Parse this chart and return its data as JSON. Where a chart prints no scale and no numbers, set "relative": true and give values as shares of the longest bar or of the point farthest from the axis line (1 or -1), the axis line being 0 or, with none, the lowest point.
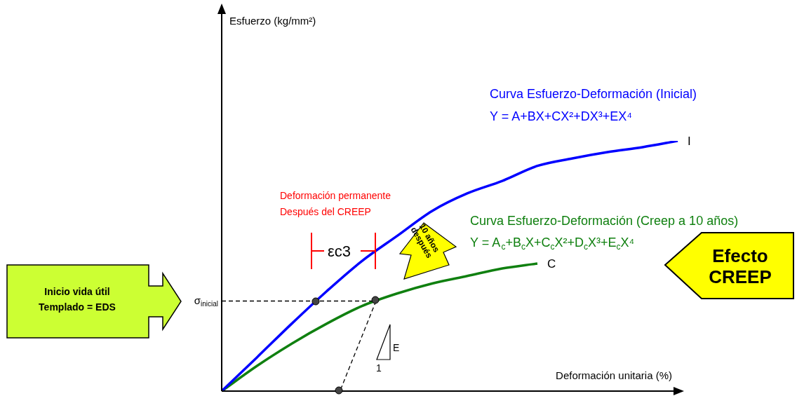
{
  "chart_data": {
    "type": "line",
    "relative": true,
    "xlabel": "Deformación unitaria (%)",
    "categories": [
      null,
      null,
      null,
      null,
      null,
      null,
      null,
      null,
      null,
      null,
      null,
      null,
      null,
      null
    ],
    "series": [
      {
        "name": "I",
        "color": "#0000ff",
        "values": [
          0,
          0.134,
          0.27,
          0.4,
          0.52,
          0.62,
          0.72,
          0.79,
          0.84,
          0.9,
          0.93,
          0.955,
          0.975,
          1
        ]
      },
      {
        "name": "C",
        "color": "#108010",
        "values": [
          0,
          0.1,
          0.19,
          0.27,
          0.34,
          0.39,
          0.43,
          0.46,
          0.49,
          0.51,
          null,
          null,
          null,
          null
        ]
      }
    ],
    "ref_lines": [
      {
        "axis": "y",
        "value": 0.36,
        "label": "σ$_{inicial}$",
        "line_style": "dashed"
      }
    ],
    "annotations": [
      "Curva Esfuerzo-Deformación (Inicial)",
      "Y = A+BX+CX²+DX³+EX⁴",
      "Curva Esfuerzo-Deformación (Creep a 10 años)",
      "Y = A$_{c}$+B$_{c}$X+C$_{c}$X²+D$_{c}$X³+E$_{c}$X⁴",
      "Deformación permanente",
      "Después del CREEP",
      "εc3",
      "Inicio vida útil\nTemplado = EDS",
      "10 años\ndespués",
      "Efecto\nCREEP",
      "E",
      "1",
      "Esfuerzo (kg/mm²)"
    ],
    "legend": false
  }
}
